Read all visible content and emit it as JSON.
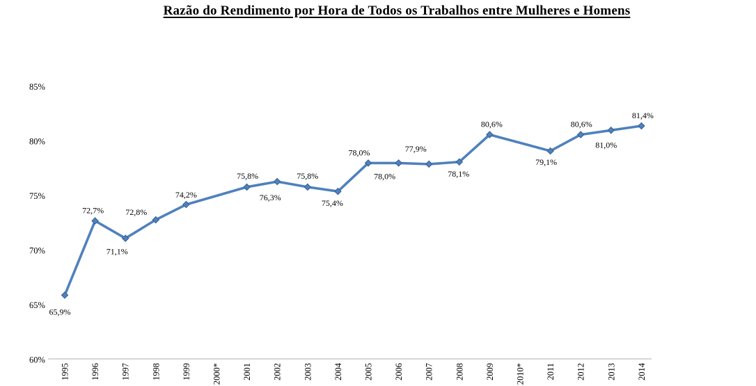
{
  "title": "Razão do Rendimento por Hora de Todos os Trabalhos entre Mulheres e Homens",
  "chart_data": {
    "type": "line",
    "title": "Razão do Rendimento por Hora de Todos os Trabalhos entre Mulheres e Homens",
    "x": [
      "1995",
      "1996",
      "1997",
      "1998",
      "1999",
      "2000*",
      "2001",
      "2002",
      "2003",
      "2004",
      "2005",
      "2006",
      "2007",
      "2008",
      "2009",
      "2010*",
      "2011",
      "2012",
      "2013",
      "2014"
    ],
    "series": [
      {
        "values": [
          65.9,
          72.7,
          71.1,
          72.8,
          74.2,
          null,
          75.8,
          76.3,
          75.8,
          75.4,
          78.0,
          78.0,
          77.9,
          78.1,
          80.6,
          null,
          79.1,
          80.6,
          81.0,
          81.4
        ],
        "labels": [
          "65,9%",
          "72,7%",
          "71,1%",
          "72,8%",
          "74,2%",
          "",
          "75,8%",
          "76,3%",
          "75,8%",
          "75,4%",
          "78,0%",
          "78,0%",
          "77,9%",
          "78,1%",
          "80,6%",
          "",
          "79,1%",
          "80,6%",
          "81,0%",
          "81,4%"
        ],
        "color": "#4F81BD",
        "marker": "diamond",
        "marker_edge_color": "#376092"
      }
    ],
    "ylim": [
      60,
      85
    ],
    "ytick_step": 5,
    "yticks": [
      "60%",
      "65%",
      "70%",
      "75%",
      "80%",
      "85%"
    ],
    "xlabel": "",
    "ylabel": "",
    "grid": false,
    "legend": false,
    "label_placement": [
      "below",
      "above",
      "below",
      "above",
      "above",
      "",
      "above",
      "below",
      "above",
      "below",
      "above",
      "below",
      "above",
      "below",
      "above",
      "",
      "below",
      "above",
      "below",
      "above"
    ],
    "label_dx": [
      -7,
      -3,
      -12,
      -28,
      0,
      0,
      1,
      -10,
      0,
      -8,
      -13,
      -20,
      -19,
      -1,
      3,
      0,
      -6,
      1,
      -7,
      2
    ],
    "label_dy": [
      5,
      0,
      0,
      4,
      1,
      0,
      -1,
      4,
      -1,
      -2,
      0,
      0,
      -7,
      -2,
      0,
      0,
      -3,
      0,
      2,
      0
    ],
    "axis_color": "#BFBFBF",
    "text_color": "#000000"
  }
}
